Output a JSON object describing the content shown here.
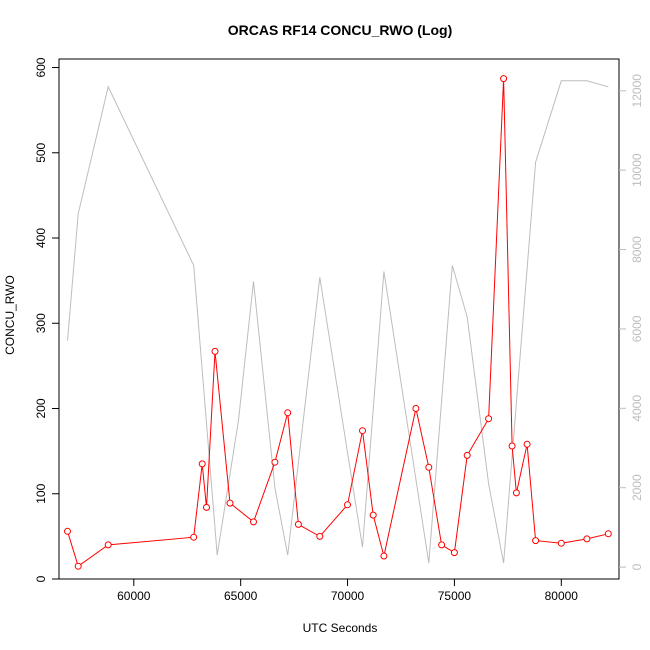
{
  "chart_data": {
    "type": "line",
    "title": "ORCAS RF14 CONCU_RWO (Log)",
    "xlabel": "UTC Seconds",
    "ylabel": "CONCU_RWO",
    "xlim": [
      56500,
      82700
    ],
    "ylim": [
      0,
      610
    ],
    "y2lim": [
      -300,
      12800
    ],
    "x_ticks": [
      60000,
      65000,
      70000,
      75000,
      80000
    ],
    "y_ticks": [
      0,
      100,
      200,
      300,
      400,
      500,
      600
    ],
    "y2_ticks": [
      0,
      2000,
      4000,
      6000,
      8000,
      10000,
      12000
    ],
    "series": [
      {
        "color": "#ff0000",
        "axis": "left",
        "marker": "open-circle",
        "x": [
          56900,
          57400,
          58800,
          62800,
          63200,
          63400,
          63800,
          64500,
          65600,
          66600,
          67200,
          67700,
          68700,
          70000,
          70700,
          71200,
          71700,
          73200,
          73800,
          74400,
          75000,
          75600,
          76600,
          77300,
          77700,
          77900,
          78400,
          78800,
          80000,
          81200,
          82200
        ],
        "y": [
          56,
          15,
          40,
          49,
          135,
          84,
          267,
          89,
          67,
          137,
          195,
          64,
          50,
          87,
          174,
          75,
          27,
          200,
          131,
          40,
          31,
          145,
          188,
          587,
          156,
          101,
          158,
          45,
          42,
          47,
          53
        ]
      },
      {
        "color": "#bdbdbd",
        "axis": "right",
        "marker": "none",
        "x": [
          56900,
          57400,
          58800,
          62800,
          63900,
          64900,
          65600,
          66600,
          67200,
          68700,
          70700,
          71700,
          73800,
          74900,
          75600,
          76600,
          77300,
          78800,
          80000,
          81200,
          82200
        ],
        "y": [
          5700,
          8900,
          12100,
          7600,
          300,
          3700,
          7200,
          2000,
          300,
          7300,
          500,
          7450,
          100,
          7600,
          6300,
          2100,
          100,
          10200,
          12250,
          12250,
          12100
        ]
      }
    ]
  }
}
